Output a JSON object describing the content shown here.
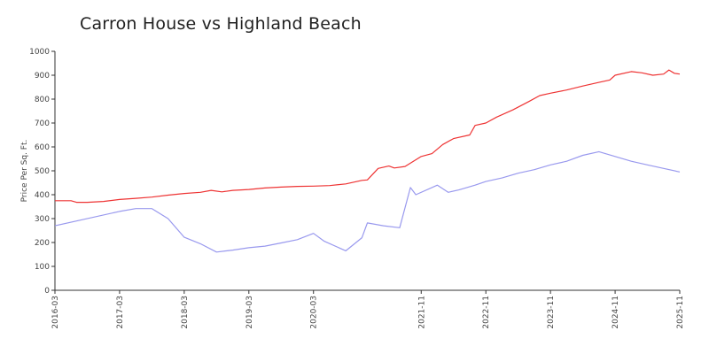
{
  "chart_data": {
    "type": "line",
    "title": "Carron House vs Highland Beach",
    "xlabel": "",
    "ylabel": "Price Per Sq. Ft.",
    "ylim": [
      0,
      1000
    ],
    "yticks": [
      0,
      100,
      200,
      300,
      400,
      500,
      600,
      700,
      800,
      900,
      1000
    ],
    "xlim": [
      "2016-03",
      "2025-11"
    ],
    "xticks": [
      "2016-03",
      "2017-03",
      "2018-03",
      "2019-03",
      "2020-03",
      "2021-11",
      "2022-11",
      "2023-11",
      "2024-11",
      "2025-11"
    ],
    "grid": false,
    "legend": "none",
    "series": [
      {
        "color": "#ee3333",
        "points": [
          [
            "2016-03",
            375
          ],
          [
            "2016-06",
            375
          ],
          [
            "2016-07",
            368
          ],
          [
            "2016-09",
            368
          ],
          [
            "2016-12",
            372
          ],
          [
            "2017-03",
            380
          ],
          [
            "2017-06",
            385
          ],
          [
            "2017-09",
            390
          ],
          [
            "2017-12",
            398
          ],
          [
            "2018-03",
            405
          ],
          [
            "2018-06",
            410
          ],
          [
            "2018-08",
            418
          ],
          [
            "2018-10",
            412
          ],
          [
            "2018-12",
            418
          ],
          [
            "2019-03",
            422
          ],
          [
            "2019-06",
            428
          ],
          [
            "2019-09",
            432
          ],
          [
            "2019-12",
            435
          ],
          [
            "2020-03",
            436
          ],
          [
            "2020-06",
            438
          ],
          [
            "2020-09",
            445
          ],
          [
            "2020-12",
            460
          ],
          [
            "2021-01",
            462
          ],
          [
            "2021-03",
            510
          ],
          [
            "2021-05",
            520
          ],
          [
            "2021-06",
            512
          ],
          [
            "2021-08",
            518
          ],
          [
            "2021-11",
            560
          ],
          [
            "2022-01",
            572
          ],
          [
            "2022-03",
            610
          ],
          [
            "2022-05",
            635
          ],
          [
            "2022-08",
            650
          ],
          [
            "2022-09",
            690
          ],
          [
            "2022-11",
            700
          ],
          [
            "2023-01",
            725
          ],
          [
            "2023-04",
            755
          ],
          [
            "2023-07",
            790
          ],
          [
            "2023-09",
            815
          ],
          [
            "2023-11",
            825
          ],
          [
            "2024-02",
            838
          ],
          [
            "2024-05",
            855
          ],
          [
            "2024-08",
            870
          ],
          [
            "2024-10",
            880
          ],
          [
            "2024-11",
            900
          ],
          [
            "2025-02",
            915
          ],
          [
            "2025-04",
            910
          ],
          [
            "2025-06",
            900
          ],
          [
            "2025-08",
            905
          ],
          [
            "2025-09",
            922
          ],
          [
            "2025-10",
            908
          ],
          [
            "2025-11",
            905
          ]
        ]
      },
      {
        "color": "#9999ee",
        "points": [
          [
            "2016-03",
            270
          ],
          [
            "2017-03",
            330
          ],
          [
            "2017-06",
            342
          ],
          [
            "2017-09",
            342
          ],
          [
            "2017-12",
            300
          ],
          [
            "2018-03",
            222
          ],
          [
            "2018-06",
            195
          ],
          [
            "2018-09",
            160
          ],
          [
            "2018-12",
            168
          ],
          [
            "2019-03",
            178
          ],
          [
            "2019-06",
            185
          ],
          [
            "2019-09",
            198
          ],
          [
            "2019-12",
            212
          ],
          [
            "2020-03",
            238
          ],
          [
            "2020-05",
            205
          ],
          [
            "2020-09",
            165
          ],
          [
            "2020-12",
            220
          ],
          [
            "2021-01",
            282
          ],
          [
            "2021-04",
            270
          ],
          [
            "2021-07",
            262
          ],
          [
            "2021-09",
            430
          ],
          [
            "2021-10",
            400
          ],
          [
            "2022-02",
            440
          ],
          [
            "2022-04",
            410
          ],
          [
            "2022-06",
            420
          ],
          [
            "2022-09",
            440
          ],
          [
            "2022-11",
            455
          ],
          [
            "2023-02",
            470
          ],
          [
            "2023-05",
            490
          ],
          [
            "2023-08",
            505
          ],
          [
            "2023-11",
            525
          ],
          [
            "2024-02",
            540
          ],
          [
            "2024-05",
            565
          ],
          [
            "2024-08",
            580
          ],
          [
            "2024-11",
            560
          ],
          [
            "2025-02",
            540
          ],
          [
            "2025-05",
            525
          ],
          [
            "2025-08",
            510
          ],
          [
            "2025-11",
            495
          ]
        ]
      }
    ]
  }
}
